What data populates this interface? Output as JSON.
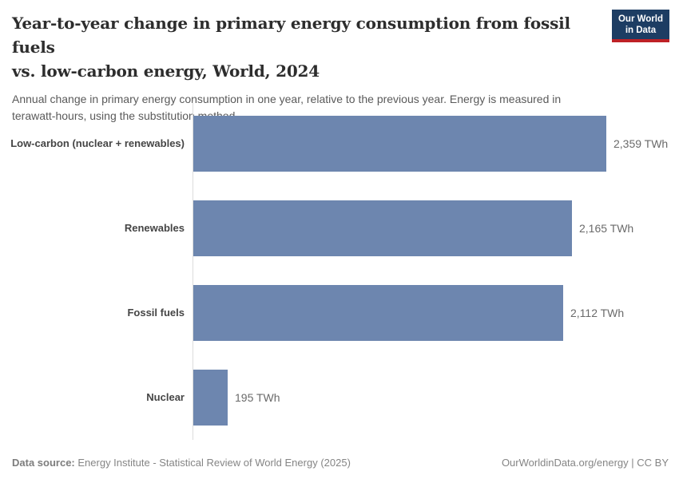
{
  "header": {
    "title": "Year-to-year change in primary energy consumption from fossil fuels vs. low-carbon energy, World, 2024",
    "title_line1": "Year-to-year change in primary energy consumption from fossil fuels",
    "title_line2": "vs. low-carbon energy, World, 2024",
    "subtitle": "Annual change in primary energy consumption in one year, relative to the previous year. Energy is measured in terawatt-hours, using the substitution method."
  },
  "logo": {
    "line1": "Our World",
    "line2": "in Data"
  },
  "chart_data": {
    "type": "bar",
    "orientation": "horizontal",
    "title": "Year-to-year change in primary energy consumption from fossil fuels vs. low-carbon energy, World, 2024",
    "unit": "TWh",
    "categories": [
      "Low-carbon (nuclear + renewables)",
      "Renewables",
      "Fossil fuels",
      "Nuclear"
    ],
    "values": [
      2359,
      2165,
      2112,
      195
    ],
    "value_labels": [
      "2,359 TWh",
      "2,165 TWh",
      "2,112 TWh",
      "195 TWh"
    ],
    "xlim": [
      0,
      2359
    ],
    "grid": false,
    "legend": "none"
  },
  "footer": {
    "datasource_label": "Data source:",
    "datasource_text": "Energy Institute - Statistical Review of World Energy (2025)",
    "credit": "OurWorldinData.org/energy | CC BY"
  },
  "colors": {
    "bar": "#6d86af",
    "logo_background": "#1d3d63",
    "logo_accent": "#be2126",
    "axis_line": "#dcdcdc"
  }
}
